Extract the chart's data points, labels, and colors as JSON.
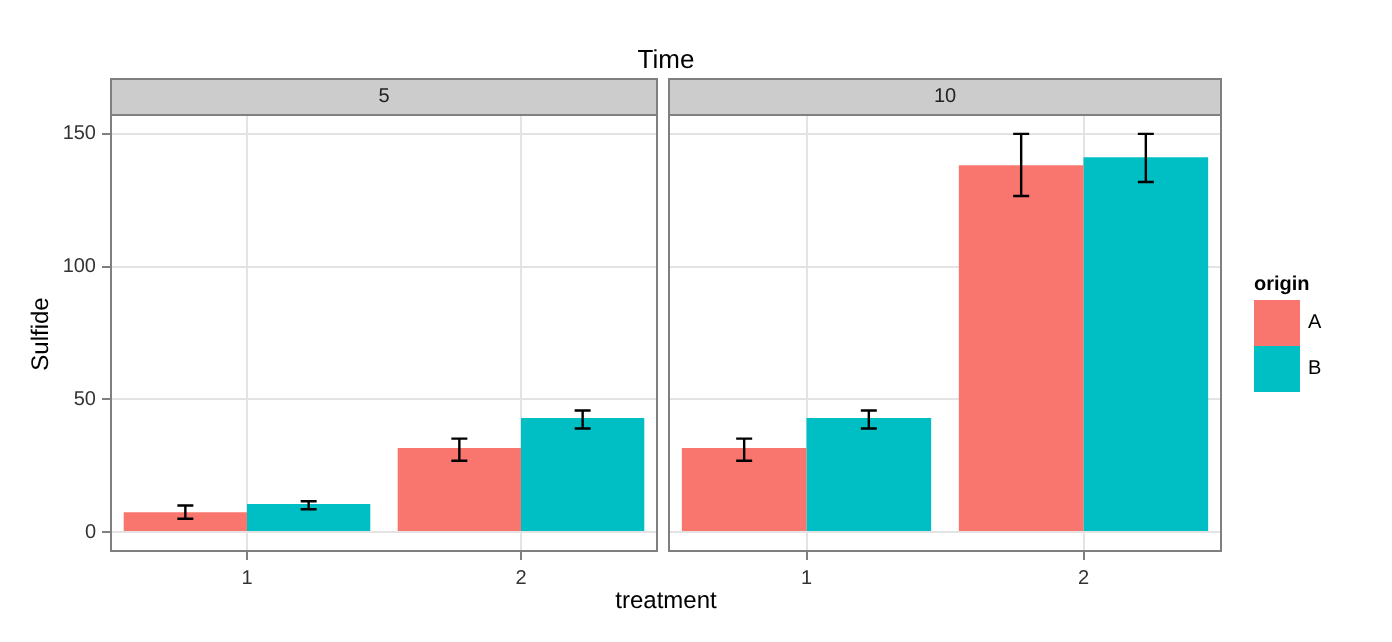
{
  "chart_data": [
    {
      "type": "bar",
      "title": "Time",
      "subtitle": "5",
      "xlabel": "treatment",
      "ylabel": "Sulfide",
      "categories": [
        "1",
        "2"
      ],
      "series": [
        {
          "color": "#f8766d",
          "values": [
            7.5,
            31.7
          ],
          "errors": [
            [
              5,
              10
            ],
            [
              26.9,
              35.2
            ]
          ]
        },
        {
          "color": "#00bfc4",
          "values": [
            10.6,
            43
          ],
          "errors": [
            [
              8.6,
              11.6
            ],
            [
              39,
              45.8
            ]
          ]
        }
      ],
      "ylim": [
        -7.5,
        157.5
      ],
      "yticks": [
        0,
        50,
        100,
        150
      ],
      "grid": true
    },
    {
      "type": "bar",
      "subtitle": "10",
      "categories": [
        "1",
        "2"
      ],
      "series": [
        {
          "name": "A",
          "color": "#f8766d",
          "values": [
            31.7,
            138.2
          ],
          "errors": [
            [
              26.9,
              35.2
            ],
            [
              126.6,
              150
            ]
          ]
        },
        {
          "name": "B",
          "color": "#00bfc4",
          "values": [
            43,
            141.2
          ],
          "errors": [
            [
              39,
              45.8
            ],
            [
              131.9,
              150
            ]
          ]
        }
      ],
      "ylim": [
        -7.5,
        157.5
      ],
      "yticks": [
        0,
        50,
        100,
        150
      ],
      "grid": true,
      "tick_labels": "x",
      "legend": "right",
      "legend_title": "origin"
    }
  ]
}
